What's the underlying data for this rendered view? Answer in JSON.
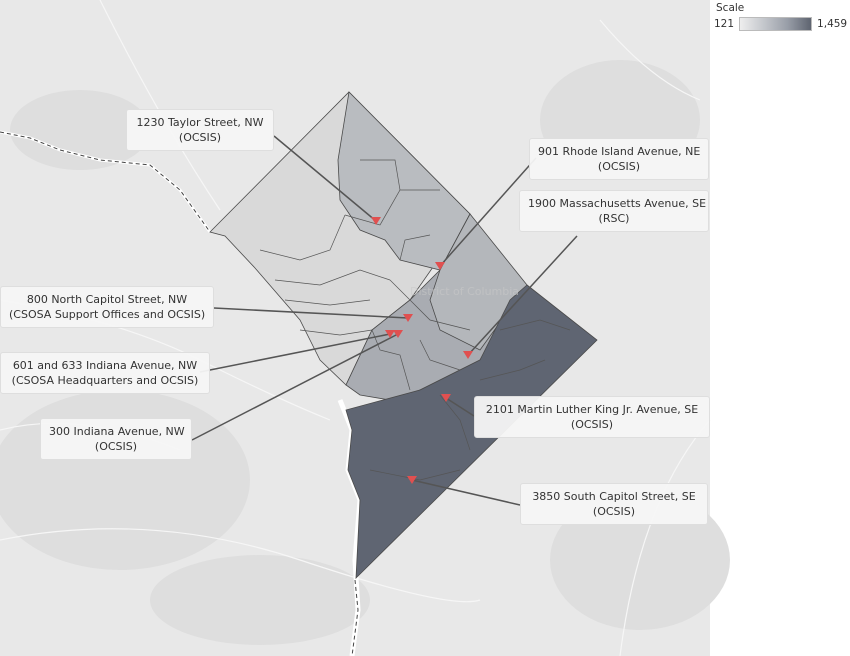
{
  "legend": {
    "title": "Scale",
    "min_label": "121",
    "max_label": "1,459",
    "colors": [
      "#eeeeee",
      "#5e6470"
    ]
  },
  "map": {
    "watermark": "District of Columbia",
    "marker_color": "#e05050",
    "region_colors": {
      "light": "#dcdcdc",
      "mid_light": "#c9c9c9",
      "mid": "#b3b6ba",
      "dark": "#5f6572"
    }
  },
  "locations": [
    {
      "line1": "1230 Taylor Street, NW",
      "line2": "(OCSIS)"
    },
    {
      "line1": "901 Rhode Island Avenue, NE",
      "line2": "(OCSIS)"
    },
    {
      "line1": "1900 Massachusetts Avenue, SE",
      "line2": "(RSC)"
    },
    {
      "line1": "800 North Capitol Street, NW",
      "line2": "(CSOSA Support Offices and OCSIS)"
    },
    {
      "line1": "601 and 633 Indiana Avenue, NW",
      "line2": "(CSOSA Headquarters and OCSIS)"
    },
    {
      "line1": "300 Indiana Avenue, NW",
      "line2": "(OCSIS)"
    },
    {
      "line1": "2101 Martin Luther King Jr. Avenue, SE",
      "line2": "(OCSIS)"
    },
    {
      "line1": "3850 South Capitol Street, SE",
      "line2": "(OCSIS)"
    }
  ]
}
